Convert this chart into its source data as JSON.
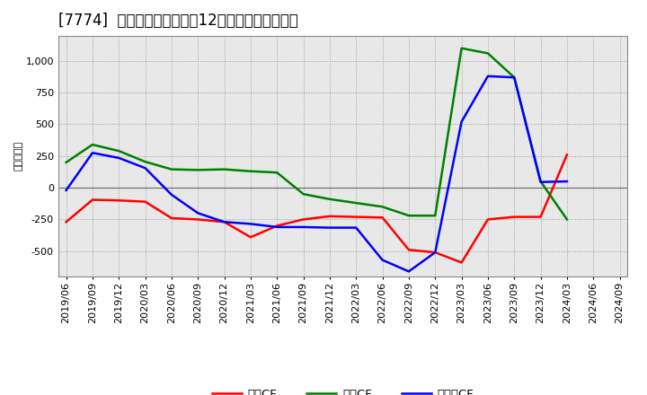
{
  "title": "[7774]  キャッシュフローの12か月移動合計の推移",
  "ylabel": "（百万円）",
  "x_labels": [
    "2019/06",
    "2019/09",
    "2019/12",
    "2020/03",
    "2020/06",
    "2020/09",
    "2020/12",
    "2021/03",
    "2021/06",
    "2021/09",
    "2021/12",
    "2022/03",
    "2022/06",
    "2022/09",
    "2022/12",
    "2023/03",
    "2023/06",
    "2023/09",
    "2023/12",
    "2024/03",
    "2024/06",
    "2024/09"
  ],
  "operating_cf": [
    -270,
    -95,
    -100,
    -110,
    -240,
    -250,
    -270,
    -390,
    -300,
    -250,
    -225,
    -230,
    -235,
    -490,
    -510,
    -590,
    -250,
    -230,
    -230,
    260,
    null,
    null
  ],
  "investing_cf": [
    200,
    340,
    290,
    205,
    145,
    140,
    145,
    130,
    120,
    -50,
    -90,
    -120,
    -150,
    -220,
    -220,
    1100,
    1060,
    870,
    50,
    -250,
    null,
    null
  ],
  "free_cf": [
    -20,
    275,
    235,
    155,
    -55,
    -200,
    -270,
    -285,
    -310,
    -310,
    -315,
    -315,
    -570,
    -660,
    -510,
    520,
    880,
    870,
    45,
    50,
    null,
    null
  ],
  "operating_color": "#ff0000",
  "investing_color": "#008000",
  "free_cf_color": "#0000ff",
  "bg_color": "#ffffff",
  "plot_bg_color": "#e8e8e8",
  "ylim": [
    -700,
    1200
  ],
  "yticks": [
    -500,
    -250,
    0,
    250,
    500,
    750,
    1000
  ],
  "legend_labels": [
    "営業CF",
    "投資CF",
    "フリーCF"
  ],
  "title_fontsize": 12,
  "axis_fontsize": 8,
  "ylabel_fontsize": 8
}
